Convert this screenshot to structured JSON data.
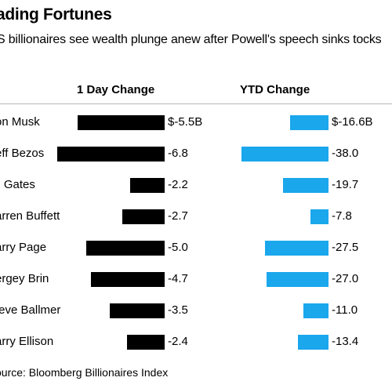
{
  "title": "ading Fortunes",
  "subtitle": "S billionaires see wealth plunge anew after Powell's speech sinks tocks",
  "source": "ource: Bloomberg Billionaires Index",
  "colors": {
    "day_bar": "#000000",
    "ytd_bar": "#1aa7ec",
    "rule": "#b8b8b8"
  },
  "chart_data": {
    "type": "bar",
    "categories": [
      "on Musk",
      "eff Bezos",
      "ll Gates",
      "arren Buffett",
      "arry Page",
      "ergey Brin",
      "teve Ballmer",
      "arry Ellison"
    ],
    "series": [
      {
        "name": "1 Day Change",
        "values": [
          -5.5,
          -6.8,
          -2.2,
          -2.7,
          -5.0,
          -4.7,
          -3.5,
          -2.4
        ],
        "labels": [
          "$-5.5B",
          "-6.8",
          "-2.2",
          "-2.7",
          "-5.0",
          "-4.7",
          "-3.5",
          "-2.4"
        ]
      },
      {
        "name": "YTD Change",
        "values": [
          -16.6,
          -38.0,
          -19.7,
          -7.8,
          -27.5,
          -27.0,
          -11.0,
          -13.4
        ],
        "labels": [
          "$-16.6B",
          "-38.0",
          "-19.7",
          "-7.8",
          "-27.5",
          "-27.0",
          "-11.0",
          "-13.4"
        ]
      }
    ],
    "xlabel": "",
    "ylabel": "",
    "grid": false,
    "legend": "none"
  }
}
